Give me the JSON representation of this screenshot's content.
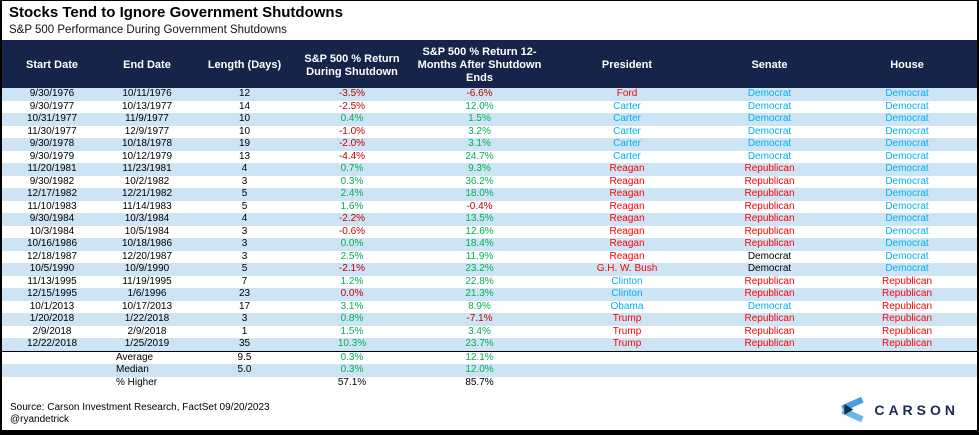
{
  "title": "Stocks Tend to Ignore Government Shutdowns",
  "subtitle": "S&P 500 Performance During Government Shutdowns",
  "chart_data": {
    "type": "table",
    "title": "Stocks Tend to Ignore Government Shutdowns",
    "subtitle": "S&P 500 Performance During Government Shutdowns",
    "columns": [
      "Start Date",
      "End Date",
      "Length (Days)",
      "S&P 500 % Return During Shutdown",
      "S&P 500 % Return 12-Months After Shutdown Ends",
      "President",
      "Senate",
      "House"
    ],
    "rows": [
      {
        "start": "9/30/1976",
        "end": "10/11/1976",
        "length": "12",
        "during": "-3.5%",
        "during_c": "neg",
        "after": "-6.6%",
        "after_c": "neg",
        "president": "Ford",
        "president_c": "rep",
        "senate": "Democrat",
        "senate_c": "dem",
        "house": "Democrat",
        "house_c": "dem"
      },
      {
        "start": "9/30/1977",
        "end": "10/13/1977",
        "length": "14",
        "during": "-2.5%",
        "during_c": "neg",
        "after": "12.0%",
        "after_c": "pos",
        "president": "Carter",
        "president_c": "dem",
        "senate": "Democrat",
        "senate_c": "dem",
        "house": "Democrat",
        "house_c": "dem"
      },
      {
        "start": "10/31/1977",
        "end": "11/9/1977",
        "length": "10",
        "during": "0.4%",
        "during_c": "pos",
        "after": "1.5%",
        "after_c": "pos",
        "president": "Carter",
        "president_c": "dem",
        "senate": "Democrat",
        "senate_c": "dem",
        "house": "Democrat",
        "house_c": "dem"
      },
      {
        "start": "11/30/1977",
        "end": "12/9/1977",
        "length": "10",
        "during": "-1.0%",
        "during_c": "neg",
        "after": "3.2%",
        "after_c": "pos",
        "president": "Carter",
        "president_c": "dem",
        "senate": "Democrat",
        "senate_c": "dem",
        "house": "Democrat",
        "house_c": "dem"
      },
      {
        "start": "9/30/1978",
        "end": "10/18/1978",
        "length": "19",
        "during": "-2.0%",
        "during_c": "neg",
        "after": "3.1%",
        "after_c": "pos",
        "president": "Carter",
        "president_c": "dem",
        "senate": "Democrat",
        "senate_c": "dem",
        "house": "Democrat",
        "house_c": "dem"
      },
      {
        "start": "9/30/1979",
        "end": "10/12/1979",
        "length": "13",
        "during": "-4.4%",
        "during_c": "neg",
        "after": "24.7%",
        "after_c": "pos",
        "president": "Carter",
        "president_c": "dem",
        "senate": "Democrat",
        "senate_c": "dem",
        "house": "Democrat",
        "house_c": "dem"
      },
      {
        "start": "11/20/1981",
        "end": "11/23/1981",
        "length": "4",
        "during": "0.7%",
        "during_c": "pos",
        "after": "9.3%",
        "after_c": "pos",
        "president": "Reagan",
        "president_c": "rep",
        "senate": "Republican",
        "senate_c": "rep",
        "house": "Democrat",
        "house_c": "dem"
      },
      {
        "start": "9/30/1982",
        "end": "10/2/1982",
        "length": "3",
        "during": "0.3%",
        "during_c": "pos",
        "after": "36.2%",
        "after_c": "pos",
        "president": "Reagan",
        "president_c": "rep",
        "senate": "Republican",
        "senate_c": "rep",
        "house": "Democrat",
        "house_c": "dem"
      },
      {
        "start": "12/17/1982",
        "end": "12/21/1982",
        "length": "5",
        "during": "2.4%",
        "during_c": "pos",
        "after": "18.0%",
        "after_c": "pos",
        "president": "Reagan",
        "president_c": "rep",
        "senate": "Republican",
        "senate_c": "rep",
        "house": "Democrat",
        "house_c": "dem"
      },
      {
        "start": "11/10/1983",
        "end": "11/14/1983",
        "length": "5",
        "during": "1.6%",
        "during_c": "pos",
        "after": "-0.4%",
        "after_c": "neg",
        "president": "Reagan",
        "president_c": "rep",
        "senate": "Republican",
        "senate_c": "rep",
        "house": "Democrat",
        "house_c": "dem"
      },
      {
        "start": "9/30/1984",
        "end": "10/3/1984",
        "length": "4",
        "during": "-2.2%",
        "during_c": "neg",
        "after": "13.5%",
        "after_c": "pos",
        "president": "Reagan",
        "president_c": "rep",
        "senate": "Republican",
        "senate_c": "rep",
        "house": "Democrat",
        "house_c": "dem"
      },
      {
        "start": "10/3/1984",
        "end": "10/5/1984",
        "length": "3",
        "during": "-0.6%",
        "during_c": "neg",
        "after": "12.6%",
        "after_c": "pos",
        "president": "Reagan",
        "president_c": "rep",
        "senate": "Republican",
        "senate_c": "rep",
        "house": "Democrat",
        "house_c": "dem"
      },
      {
        "start": "10/16/1986",
        "end": "10/18/1986",
        "length": "3",
        "during": "0.0%",
        "during_c": "pos",
        "after": "18.4%",
        "after_c": "pos",
        "president": "Reagan",
        "president_c": "rep",
        "senate": "Republican",
        "senate_c": "rep",
        "house": "Democrat",
        "house_c": "dem"
      },
      {
        "start": "12/18/1987",
        "end": "12/20/1987",
        "length": "3",
        "during": "2.5%",
        "during_c": "pos",
        "after": "11.9%",
        "after_c": "pos",
        "president": "Reagan",
        "president_c": "rep",
        "senate": "Democrat",
        "senate_c": "blk",
        "house": "Democrat",
        "house_c": "dem"
      },
      {
        "start": "10/5/1990",
        "end": "10/9/1990",
        "length": "5",
        "during": "-2.1%",
        "during_c": "neg",
        "after": "23.2%",
        "after_c": "pos",
        "president": "G.H. W. Bush",
        "president_c": "rep",
        "senate": "Democrat",
        "senate_c": "blk",
        "house": "Democrat",
        "house_c": "dem"
      },
      {
        "start": "11/13/1995",
        "end": "11/19/1995",
        "length": "7",
        "during": "1.2%",
        "during_c": "pos",
        "after": "22.8%",
        "after_c": "pos",
        "president": "Clinton",
        "president_c": "dem",
        "senate": "Republican",
        "senate_c": "rep",
        "house": "Republican",
        "house_c": "rep"
      },
      {
        "start": "12/15/1995",
        "end": "1/6/1996",
        "length": "23",
        "during": "0.0%",
        "during_c": "neg",
        "after": "21.3%",
        "after_c": "pos",
        "president": "Clinton",
        "president_c": "dem",
        "senate": "Republican",
        "senate_c": "rep",
        "house": "Republican",
        "house_c": "rep"
      },
      {
        "start": "10/1/2013",
        "end": "10/17/2013",
        "length": "17",
        "during": "3.1%",
        "during_c": "pos",
        "after": "8.9%",
        "after_c": "pos",
        "president": "Obama",
        "president_c": "dem",
        "senate": "Democrat",
        "senate_c": "dem",
        "house": "Republican",
        "house_c": "rep"
      },
      {
        "start": "1/20/2018",
        "end": "1/22/2018",
        "length": "3",
        "during": "0.8%",
        "during_c": "pos",
        "after": "-7.1%",
        "after_c": "neg",
        "president": "Trump",
        "president_c": "rep",
        "senate": "Republican",
        "senate_c": "rep",
        "house": "Republican",
        "house_c": "rep"
      },
      {
        "start": "2/9/2018",
        "end": "2/9/2018",
        "length": "1",
        "during": "1.5%",
        "during_c": "pos",
        "after": "3.4%",
        "after_c": "pos",
        "president": "Trump",
        "president_c": "rep",
        "senate": "Republican",
        "senate_c": "rep",
        "house": "Republican",
        "house_c": "rep"
      },
      {
        "start": "12/22/2018",
        "end": "1/25/2019",
        "length": "35",
        "during": "10.3%",
        "during_c": "pos",
        "after": "23.7%",
        "after_c": "pos",
        "president": "Trump",
        "president_c": "rep",
        "senate": "Republican",
        "senate_c": "rep",
        "house": "Republican",
        "house_c": "rep"
      }
    ],
    "summary": [
      {
        "label": "Average",
        "length": "9.5",
        "during": "0.3%",
        "during_c": "pos",
        "after": "12.1%",
        "after_c": "pos"
      },
      {
        "label": "Median",
        "length": "5.0",
        "during": "0.3%",
        "during_c": "pos",
        "after": "12.0%",
        "after_c": "pos"
      },
      {
        "label": "% Higher",
        "length": "",
        "during": "57.1%",
        "during_c": "blk",
        "after": "85.7%",
        "after_c": "blk"
      }
    ]
  },
  "source_line1": "Source: Carson Investment Research, FactSet 09/20/2023",
  "source_line2": "@ryandetrick",
  "logo_text": "CARSON",
  "colors": {
    "header_bg": "#152448",
    "stripe": "#CDE4F4",
    "positive": "#00B050",
    "negative": "#C00000",
    "republican": "#FF0000",
    "democrat": "#00B0F0",
    "logo_navy": "#1B2B4C"
  }
}
